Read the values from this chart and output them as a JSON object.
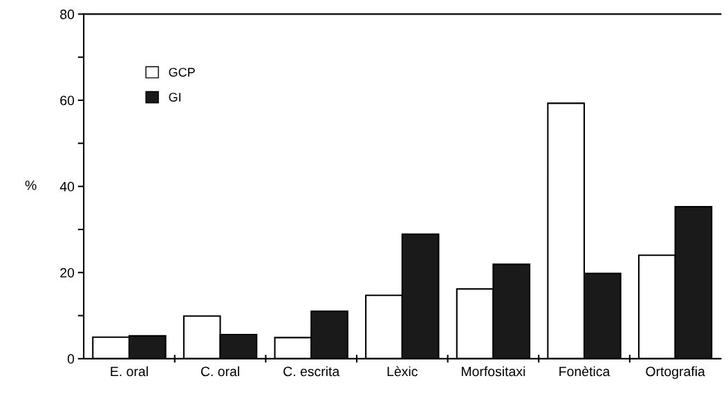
{
  "chart_data": {
    "type": "bar",
    "categories": [
      "E. oral",
      "C. oral",
      "C. escrita",
      "Lèxic",
      "Morfositaxi",
      "Fonètica",
      "Ortografia"
    ],
    "series": [
      {
        "name": "GCP",
        "color": "#ffffff",
        "values": [
          5.0,
          9.9,
          4.9,
          14.7,
          16.2,
          59.3,
          24.0
        ]
      },
      {
        "name": "GI",
        "color": "#1a1a1a",
        "values": [
          5.3,
          5.6,
          11.0,
          28.9,
          21.9,
          19.8,
          35.3
        ]
      }
    ],
    "ylabel": "%",
    "ylim": [
      0,
      80
    ],
    "yticks": [
      0,
      {
        "value": 10,
        "label": null
      },
      20,
      {
        "value": 30,
        "label": null
      },
      40,
      {
        "value": 50,
        "label": null
      },
      60,
      {
        "value": 70,
        "label": null
      },
      80
    ],
    "grid": false,
    "legend": "top left"
  }
}
